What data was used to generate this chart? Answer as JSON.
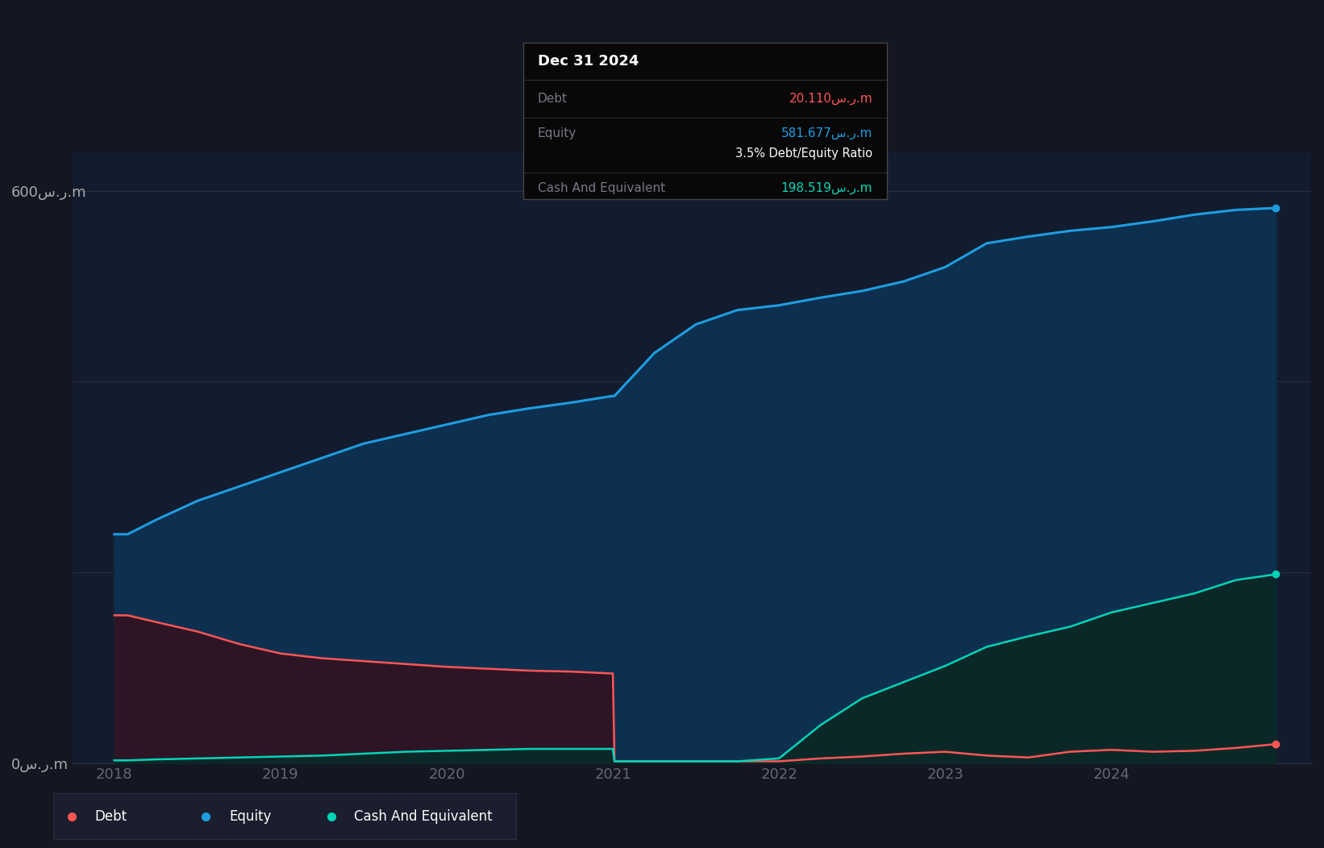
{
  "background_color": "#131722",
  "plot_bg_color": "#131c2e",
  "years_x": [
    2018.0,
    2018.08,
    2018.25,
    2018.5,
    2018.75,
    2019.0,
    2019.25,
    2019.5,
    2019.75,
    2020.0,
    2020.25,
    2020.5,
    2020.75,
    2021.0,
    2021.01,
    2021.25,
    2021.5,
    2021.75,
    2022.0,
    2022.25,
    2022.5,
    2022.75,
    2023.0,
    2023.25,
    2023.5,
    2023.75,
    2024.0,
    2024.25,
    2024.5,
    2024.75,
    2024.99
  ],
  "equity": [
    240,
    240,
    255,
    275,
    290,
    305,
    320,
    335,
    345,
    355,
    365,
    372,
    378,
    385,
    385,
    430,
    460,
    475,
    480,
    488,
    495,
    505,
    520,
    545,
    552,
    558,
    562,
    568,
    575,
    580,
    582
  ],
  "debt": [
    155,
    155,
    148,
    138,
    125,
    115,
    110,
    107,
    104,
    101,
    99,
    97,
    96,
    94,
    2,
    2,
    2,
    2,
    2,
    5,
    7,
    10,
    12,
    8,
    6,
    12,
    14,
    12,
    13,
    16,
    20
  ],
  "cash": [
    3,
    3,
    4,
    5,
    6,
    7,
    8,
    10,
    12,
    13,
    14,
    15,
    15,
    15,
    2,
    2,
    2,
    2,
    5,
    40,
    68,
    85,
    102,
    122,
    133,
    143,
    158,
    168,
    178,
    192,
    198
  ],
  "equity_color": "#1e9de0",
  "debt_color": "#ff5555",
  "cash_color": "#00d4b8",
  "equity_fill_top": "#0d3050",
  "equity_fill_bot": "#0a1e35",
  "debt_fill": "#2d1525",
  "cash_fill": "#0a2828",
  "ylim": [
    0,
    640
  ],
  "xlim": [
    2017.75,
    2025.2
  ],
  "xticks": [
    2018,
    2019,
    2020,
    2021,
    2022,
    2023,
    2024
  ],
  "xtick_labels": [
    "2018",
    "2019",
    "2020",
    "2021",
    "2022",
    "2023",
    "2024"
  ],
  "grid_color": "#2a2e3e",
  "tick_color": "#666677",
  "label_color": "#aaaaaa",
  "tooltip_title": "Dec 31 2024",
  "tooltip_debt_label": "Debt",
  "tooltip_debt_value": "20.110س.ر.m",
  "tooltip_equity_label": "Equity",
  "tooltip_equity_value": "581.677س.ر.m",
  "tooltip_ratio": "3.5% Debt/Equity Ratio",
  "tooltip_cash_label": "Cash And Equivalent",
  "tooltip_cash_value": "198.519س.ر.m",
  "legend_items": [
    "Debt",
    "Equity",
    "Cash And Equivalent"
  ],
  "legend_colors": [
    "#ff5555",
    "#1e9de0",
    "#00d4b8"
  ]
}
